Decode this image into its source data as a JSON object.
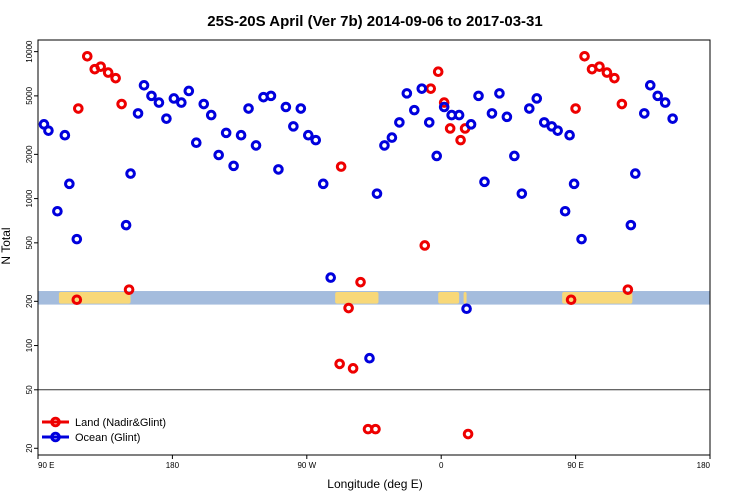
{
  "chart_data": {
    "type": "scatter",
    "title": "25S-20S April (Ver 7b)   2014-09-06 to 2017-03-31",
    "xlabel": "Longitude (deg E)",
    "ylabel": "N Total",
    "xscale": "linear",
    "yscale": "log",
    "xlim": [
      90,
      540
    ],
    "ylim": [
      18,
      12000
    ],
    "x_ticks": [
      {
        "value": 90,
        "label": "90 E"
      },
      {
        "value": 180,
        "label": "180"
      },
      {
        "value": 270,
        "label": "90 W"
      },
      {
        "value": 360,
        "label": "0"
      },
      {
        "value": 450,
        "label": "90 E"
      },
      {
        "value": 540,
        "label": "180"
      }
    ],
    "y_ticks": [
      {
        "value": 20,
        "label": "20"
      },
      {
        "value": 50,
        "label": "50"
      },
      {
        "value": 100,
        "label": "100"
      },
      {
        "value": 200,
        "label": "200"
      },
      {
        "value": 500,
        "label": "500"
      },
      {
        "value": 1000,
        "label": "1000"
      },
      {
        "value": 2000,
        "label": "2000"
      },
      {
        "value": 5000,
        "label": "5000"
      },
      {
        "value": 10000,
        "label": "10000"
      }
    ],
    "hline": 50,
    "map_strip": {
      "ymin": 190,
      "ymax": 235,
      "ocean_color": "#a4bcdd",
      "land_color": "#f8d878"
    },
    "legend_position": "bottom-left",
    "series": [
      {
        "name": "Land (Nadir&Glint)",
        "color": "#ee0000",
        "points": [
          [
            116,
            205
          ],
          [
            117,
            4100
          ],
          [
            123,
            9300
          ],
          [
            128,
            7600
          ],
          [
            132,
            7900
          ],
          [
            137,
            7200
          ],
          [
            142,
            6600
          ],
          [
            146,
            4400
          ],
          [
            151,
            240
          ],
          [
            293,
            1650
          ],
          [
            298,
            180
          ],
          [
            292,
            75
          ],
          [
            301,
            70
          ],
          [
            306,
            270
          ],
          [
            311,
            27
          ],
          [
            316,
            27
          ],
          [
            349,
            480
          ],
          [
            353,
            5600
          ],
          [
            358,
            7300
          ],
          [
            362,
            4500
          ],
          [
            366,
            3000
          ],
          [
            373,
            2500
          ],
          [
            376,
            3000
          ],
          [
            378,
            25
          ],
          [
            447,
            205
          ],
          [
            450,
            4100
          ],
          [
            456,
            9300
          ],
          [
            461,
            7600
          ],
          [
            466,
            7900
          ],
          [
            471,
            7200
          ],
          [
            476,
            6600
          ],
          [
            481,
            4400
          ],
          [
            485,
            240
          ]
        ]
      },
      {
        "name": "Ocean (Glint)",
        "color": "#0000dd",
        "points": [
          [
            94,
            3200
          ],
          [
            97,
            2900
          ],
          [
            103,
            820
          ],
          [
            108,
            2700
          ],
          [
            111,
            1260
          ],
          [
            116,
            530
          ],
          [
            149,
            660
          ],
          [
            152,
            1480
          ],
          [
            157,
            3800
          ],
          [
            161,
            5900
          ],
          [
            166,
            5000
          ],
          [
            171,
            4500
          ],
          [
            176,
            3500
          ],
          [
            181,
            4800
          ],
          [
            186,
            4500
          ],
          [
            191,
            5400
          ],
          [
            196,
            2400
          ],
          [
            201,
            4400
          ],
          [
            206,
            3700
          ],
          [
            211,
            1980
          ],
          [
            216,
            2800
          ],
          [
            221,
            1670
          ],
          [
            226,
            2700
          ],
          [
            231,
            4100
          ],
          [
            236,
            2300
          ],
          [
            241,
            4900
          ],
          [
            246,
            5000
          ],
          [
            251,
            1580
          ],
          [
            256,
            4200
          ],
          [
            261,
            3100
          ],
          [
            266,
            4100
          ],
          [
            271,
            2700
          ],
          [
            276,
            2500
          ],
          [
            281,
            1260
          ],
          [
            286,
            290
          ],
          [
            312,
            82
          ],
          [
            317,
            1080
          ],
          [
            322,
            2300
          ],
          [
            327,
            2600
          ],
          [
            332,
            3300
          ],
          [
            337,
            5200
          ],
          [
            342,
            4000
          ],
          [
            347,
            5600
          ],
          [
            352,
            3300
          ],
          [
            357,
            1950
          ],
          [
            362,
            4200
          ],
          [
            367,
            3700
          ],
          [
            372,
            3700
          ],
          [
            377,
            178
          ],
          [
            380,
            3200
          ],
          [
            385,
            5000
          ],
          [
            389,
            1300
          ],
          [
            394,
            3800
          ],
          [
            399,
            5200
          ],
          [
            404,
            3600
          ],
          [
            409,
            1950
          ],
          [
            414,
            1080
          ],
          [
            419,
            4100
          ],
          [
            424,
            4800
          ],
          [
            429,
            3300
          ],
          [
            434,
            3100
          ],
          [
            438,
            2900
          ],
          [
            443,
            820
          ],
          [
            446,
            2700
          ],
          [
            449,
            1260
          ],
          [
            454,
            530
          ],
          [
            487,
            660
          ],
          [
            490,
            1480
          ],
          [
            496,
            3800
          ],
          [
            500,
            5900
          ],
          [
            505,
            5000
          ],
          [
            510,
            4500
          ],
          [
            515,
            3500
          ]
        ]
      }
    ]
  }
}
